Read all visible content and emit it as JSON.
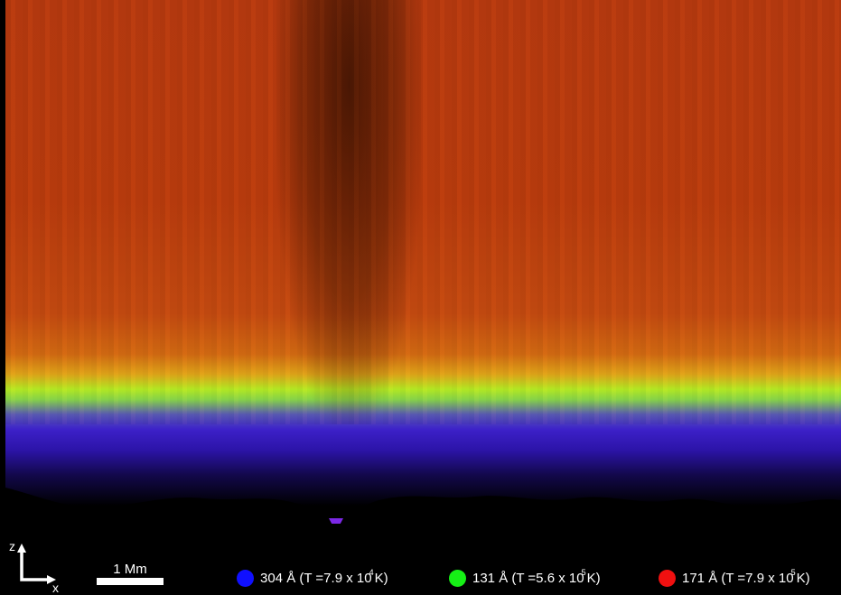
{
  "scene": {
    "description_icon": "solar-atmosphere-simulation-rgb-composite",
    "colors": {
      "corona": "#b83a0f",
      "transition": "#b7ee24",
      "chromosphere": "#3c20c8",
      "background": "#000000"
    }
  },
  "axes": {
    "z_label": "z",
    "x_label": "x"
  },
  "scalebar": {
    "label": "1 Mm"
  },
  "legend": [
    {
      "color": "#1010ff",
      "text_prefix": "304 Å (T =7.9 x 10",
      "exponent": "4",
      "text_suffix": "K)"
    },
    {
      "color": "#16f016",
      "text_prefix": "131 Å (T =5.6 x 10",
      "exponent": "5",
      "text_suffix": "K)"
    },
    {
      "color": "#f01010",
      "text_prefix": "171 Å (T =7.9 x 10",
      "exponent": "5",
      "text_suffix": "K)"
    }
  ]
}
